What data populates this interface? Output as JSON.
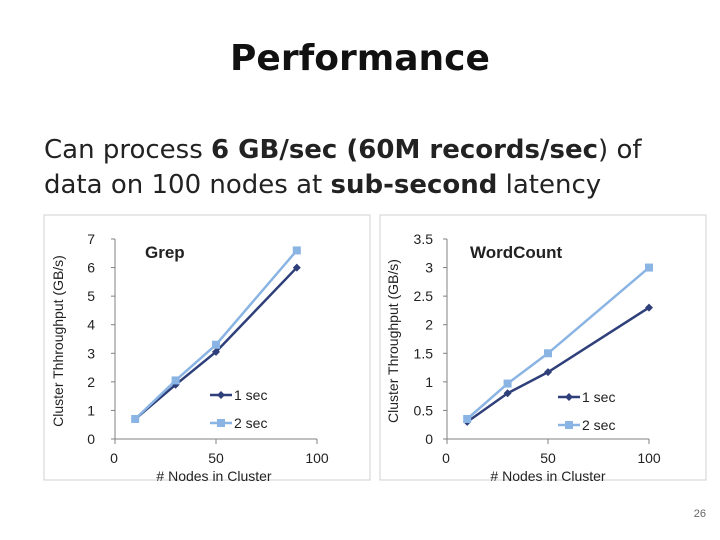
{
  "slide": {
    "title": "Performance",
    "subtitle_1": "Can process ",
    "subtitle_2": "6 GB/sec (60M records/sec",
    "subtitle_3": ") of data on 100 nodes at ",
    "subtitle_4": "sub-second",
    "subtitle_5": " latency",
    "page_number": "26"
  },
  "colors": {
    "series_1": "#2E3F7A",
    "series_2": "#8AB4E3",
    "axis": "#808080"
  },
  "chart_data": [
    {
      "type": "line",
      "title": "Grep",
      "xlabel": "# Nodes in Cluster",
      "ylabel": "Cluster Thhroughput (GB/s)",
      "xlim": [
        0,
        100
      ],
      "ylim": [
        0,
        7
      ],
      "xticks": [
        "0",
        "50",
        "100"
      ],
      "yticks": [
        "0",
        "1",
        "2",
        "3",
        "4",
        "5",
        "6",
        "7"
      ],
      "legend": "center-right",
      "series": [
        {
          "name": "1 sec",
          "marker": "diamond",
          "x": [
            10,
            30,
            50,
            90
          ],
          "y": [
            0.7,
            1.9,
            3.05,
            6.0
          ]
        },
        {
          "name": "2 sec",
          "marker": "square",
          "x": [
            10,
            30,
            50,
            90
          ],
          "y": [
            0.7,
            2.05,
            3.3,
            6.6
          ]
        }
      ]
    },
    {
      "type": "line",
      "title": "WordCount",
      "xlabel": "# Nodes in Cluster",
      "ylabel": "Cluster Throughput (GB/s)",
      "xlim": [
        0,
        100
      ],
      "ylim": [
        0,
        3.5
      ],
      "xticks": [
        "0",
        "50",
        "100"
      ],
      "yticks": [
        "0",
        "0.5",
        "1",
        "1.5",
        "2",
        "2.5",
        "3",
        "3.5"
      ],
      "legend": "center-right",
      "series": [
        {
          "name": "1 sec",
          "marker": "diamond",
          "x": [
            10,
            30,
            50,
            100
          ],
          "y": [
            0.3,
            0.8,
            1.17,
            2.3
          ]
        },
        {
          "name": "2 sec",
          "marker": "square",
          "x": [
            10,
            30,
            50,
            100
          ],
          "y": [
            0.35,
            0.97,
            1.5,
            3.0
          ]
        }
      ]
    }
  ]
}
